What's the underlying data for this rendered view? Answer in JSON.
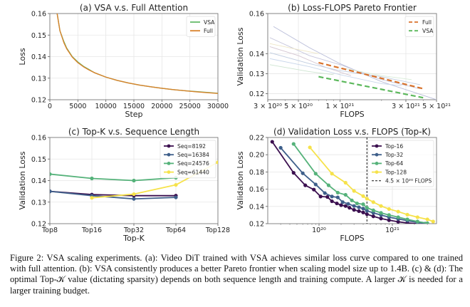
{
  "chart_data": [
    {
      "id": "a",
      "type": "line",
      "title": "(a) VSA v.s. Full Attention",
      "xlabel": "Step",
      "ylabel": "Loss",
      "xlim": [
        0,
        30000
      ],
      "ylim": [
        0.12,
        0.16
      ],
      "xticks": [
        0,
        5000,
        10000,
        15000,
        20000,
        25000,
        30000
      ],
      "xtick_labels": [
        "0",
        "5000",
        "10000",
        "15000",
        "20000",
        "25000",
        "30000"
      ],
      "yticks": [
        0.12,
        0.13,
        0.14,
        0.15,
        0.16
      ],
      "ytick_labels": [
        "0.12",
        "0.13",
        "0.14",
        "0.15",
        "0.16"
      ],
      "grid": true,
      "legend": "top-right",
      "series": [
        {
          "name": "VSA",
          "color": "#66bb6a",
          "x": [
            1300,
            1800,
            2500,
            3000,
            4000,
            5000,
            6000,
            7000,
            8000,
            10000,
            12000,
            14000,
            16000,
            18000,
            20000,
            22000,
            24000,
            26000,
            28000,
            30000
          ],
          "y": [
            0.16,
            0.152,
            0.147,
            0.144,
            0.14,
            0.1375,
            0.1355,
            0.134,
            0.1325,
            0.1305,
            0.129,
            0.1278,
            0.1268,
            0.126,
            0.1253,
            0.1247,
            0.1242,
            0.1238,
            0.1234,
            0.123
          ]
        },
        {
          "name": "Full",
          "color": "#d9822b",
          "x": [
            1300,
            1800,
            2500,
            3000,
            4000,
            5000,
            6000,
            7000,
            8000,
            10000,
            12000,
            14000,
            16000,
            18000,
            20000,
            22000,
            24000,
            26000,
            28000,
            30000
          ],
          "y": [
            0.16,
            0.152,
            0.1465,
            0.1437,
            0.1398,
            0.1372,
            0.1353,
            0.1338,
            0.1325,
            0.1305,
            0.129,
            0.1278,
            0.1268,
            0.126,
            0.1253,
            0.1247,
            0.1242,
            0.1237,
            0.1233,
            0.1229
          ]
        }
      ]
    },
    {
      "id": "b",
      "type": "line",
      "title": "(b) Loss-FLOPS Pareto Frontier",
      "xlabel": "FLOPS",
      "ylabel": "Validation Loss",
      "xscale": "log",
      "xlim": [
        3e+20,
        5e+21
      ],
      "ylim": [
        0.117,
        0.16
      ],
      "xticks": [
        3e+20,
        5e+20,
        1e+21,
        3e+21,
        5e+21
      ],
      "xtick_labels": [
        "3 × 10²⁰",
        "5 × 10²⁰",
        "1 × 10²¹",
        "3 × 10²¹",
        "5 × 10²¹"
      ],
      "yticks": [
        0.12,
        0.13,
        0.14,
        0.16
      ],
      "ytick_labels": [
        "0.12",
        "0.13",
        "0.14",
        "0.16"
      ],
      "grid": true,
      "legend": "top-right",
      "series": [
        {
          "name": "Full",
          "style": "dashed",
          "color": "#d9722b",
          "x": [
            7e+20,
            4e+21
          ],
          "y": [
            0.1355,
            0.1225
          ]
        },
        {
          "name": "VSA",
          "style": "dashed",
          "color": "#5cb85c",
          "x": [
            7e+20,
            4e+21
          ],
          "y": [
            0.1285,
            0.118
          ]
        }
      ],
      "background_curves": [
        {
          "color": "#b8bcd8",
          "x": [
            3.3e+20,
            6e+20,
            1e+21,
            2e+21,
            5e+21
          ],
          "y": [
            0.1535,
            0.143,
            0.135,
            0.126,
            0.117
          ]
        },
        {
          "color": "#c6c6dc",
          "x": [
            3.1e+20,
            6e+20,
            1e+21,
            2e+21,
            3.8e+21
          ],
          "y": [
            0.148,
            0.139,
            0.1345,
            0.127,
            0.1225
          ]
        },
        {
          "color": "#d4c6d2",
          "x": [
            3.1e+20,
            5e+20,
            8e+20,
            1.2e+21
          ],
          "y": [
            0.1435,
            0.139,
            0.133,
            0.129
          ]
        },
        {
          "color": "#c0cde0",
          "x": [
            3.1e+20,
            6e+20,
            1e+21,
            2e+21,
            3.8e+21
          ],
          "y": [
            0.1405,
            0.135,
            0.1315,
            0.1285,
            0.1245
          ]
        },
        {
          "color": "#c8d6ea",
          "x": [
            3.1e+20,
            6e+20,
            1e+21,
            2e+21,
            2.8e+21
          ],
          "y": [
            0.1375,
            0.1335,
            0.1295,
            0.125,
            0.124
          ]
        },
        {
          "color": "#cde4d0",
          "x": [
            3.1e+20,
            6e+20,
            9e+20
          ],
          "y": [
            0.1345,
            0.131,
            0.1295
          ]
        },
        {
          "color": "#d8ecd8",
          "x": [
            1.1e+21,
            2e+21,
            3.3e+21
          ],
          "y": [
            0.1325,
            0.129,
            0.127
          ]
        },
        {
          "color": "#eee6c6",
          "x": [
            3.1e+20,
            5e+20,
            7e+20
          ],
          "y": [
            0.145,
            0.142,
            0.14
          ]
        }
      ]
    },
    {
      "id": "c",
      "type": "line",
      "title": "(c) Top-K v.s. Sequence Length",
      "xlabel": "Top-K",
      "ylabel": "Validation Loss",
      "categories": [
        "Top8",
        "Top16",
        "Top32",
        "Top64",
        "Top128"
      ],
      "ylim": [
        0.12,
        0.16
      ],
      "yticks": [
        0.12,
        0.13,
        0.14,
        0.15,
        0.16
      ],
      "ytick_labels": [
        "0.12",
        "0.13",
        "0.14",
        "0.15",
        "0.16"
      ],
      "grid": true,
      "legend": "top-right",
      "series": [
        {
          "name": "Seq=8192",
          "color": "#3b0f4f",
          "values": [
            0.135,
            0.1335,
            0.133,
            0.133,
            null
          ]
        },
        {
          "name": "Seq=16384",
          "color": "#3e5f8a",
          "values": [
            0.135,
            0.133,
            0.1315,
            0.1322,
            null
          ]
        },
        {
          "name": "Seq=24576",
          "color": "#55b27a",
          "values": [
            0.143,
            0.141,
            0.14,
            0.1413,
            null
          ]
        },
        {
          "name": "Seq=61440",
          "color": "#f6e24a",
          "values": [
            null,
            0.132,
            0.1337,
            0.138,
            0.1485
          ]
        }
      ]
    },
    {
      "id": "d",
      "type": "line",
      "title": "(d) Validation Loss v.s. FLOPS (Top-K)",
      "xlabel": "FLOPS",
      "ylabel": "Validation Loss",
      "xscale": "log",
      "xlim": [
        2e+19,
        4e+21
      ],
      "ylim": [
        0.12,
        0.22
      ],
      "xticks": [
        1e+20,
        1e+21
      ],
      "xtick_labels": [
        "10²⁰",
        "10²¹"
      ],
      "yticks": [
        0.12,
        0.14,
        0.16,
        0.18,
        0.2,
        0.22
      ],
      "ytick_labels": [
        "0.12",
        "0.14",
        "0.16",
        "0.18",
        "0.20",
        "0.22"
      ],
      "grid": true,
      "legend": "top-right",
      "vline": {
        "x": 4.5e+20,
        "label": "4.5 × 10²⁰ FLOPS",
        "style": "dashed",
        "color": "#111111"
      },
      "series": [
        {
          "name": "Top-16",
          "color": "#3b0f4f",
          "x": [
            2.3e+19,
            4.5e+19,
            6.5e+19,
            8.5e+19,
            1.05e+20,
            1.3e+20,
            1.5e+20,
            1.75e+20,
            2e+20,
            2.3e+20,
            2.6e+20,
            3e+20,
            3.5e+20,
            4e+20,
            4.5e+20,
            5.5e+20,
            7e+20,
            9e+20,
            1.2e+21,
            1.6e+21,
            2.2e+21
          ],
          "y": [
            0.215,
            0.179,
            0.1645,
            0.1595,
            0.1515,
            0.151,
            0.146,
            0.1435,
            0.1415,
            0.1405,
            0.1385,
            0.136,
            0.1345,
            0.133,
            0.131,
            0.1285,
            0.126,
            0.124,
            0.1222,
            0.1208,
            0.12
          ]
        },
        {
          "name": "Top-32",
          "color": "#3e5f8a",
          "x": [
            3e+19,
            6e+19,
            9e+19,
            1.2e+20,
            1.5e+20,
            1.8e+20,
            2.1e+20,
            2.5e+20,
            3e+20,
            3.5e+20,
            4e+20,
            4.5e+20,
            5.5e+20,
            7e+20,
            9e+20,
            1.2e+21,
            1.6e+21,
            2.2e+21,
            2.8e+21
          ],
          "y": [
            0.208,
            0.1785,
            0.1655,
            0.1555,
            0.1515,
            0.1505,
            0.145,
            0.143,
            0.1405,
            0.139,
            0.1375,
            0.135,
            0.1325,
            0.13,
            0.1275,
            0.1255,
            0.1235,
            0.1215,
            0.12
          ]
        },
        {
          "name": "Top-64",
          "color": "#55b27a",
          "x": [
            4.5e+19,
            9e+19,
            1.35e+20,
            1.8e+20,
            2.3e+20,
            2.8e+20,
            3.3e+20,
            4e+20,
            4.5e+20,
            5.5e+20,
            7e+20,
            9e+20,
            1.2e+21,
            1.6e+21,
            2.2e+21,
            3e+21
          ],
          "y": [
            0.2125,
            0.178,
            0.1645,
            0.156,
            0.1535,
            0.147,
            0.1435,
            0.1425,
            0.1385,
            0.1355,
            0.1325,
            0.13,
            0.1275,
            0.125,
            0.1225,
            0.1205
          ]
        },
        {
          "name": "Top-128",
          "color": "#f6e24a",
          "x": [
            7.5e+19,
            1.5e+20,
            2.3e+20,
            3e+20,
            4e+20,
            4.5e+20,
            5.5e+20,
            7e+20,
            9e+20,
            1.2e+21,
            1.6e+21,
            2.2e+21,
            3e+21,
            3.6e+21
          ],
          "y": [
            0.2085,
            0.178,
            0.1675,
            0.158,
            0.152,
            0.149,
            0.145,
            0.1405,
            0.137,
            0.134,
            0.1305,
            0.1275,
            0.125,
            0.1225
          ]
        }
      ]
    }
  ],
  "caption": "Figure 2: VSA scaling experiments. (a): Video DiT trained with VSA achieves similar loss curve compared to one trained with full attention. (b): VSA consistently produces a better Pareto frontier when scaling model size up to 1.4B. (c) & (d): The optimal Top-𝒦 value (dictating sparsity) depends on both sequence length and training compute. A larger 𝒦 is needed for a larger training budget."
}
